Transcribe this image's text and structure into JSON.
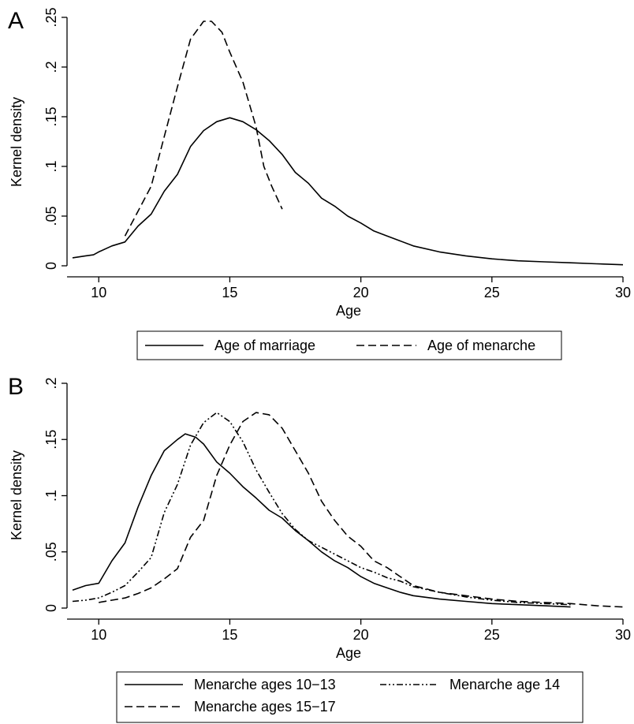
{
  "chart_data": [
    {
      "panel_label": "A",
      "type": "line",
      "xlabel": "Age",
      "ylabel": "Kernel density",
      "xlim": [
        9,
        30
      ],
      "ylim": [
        0,
        0.25
      ],
      "x_ticks": [
        10,
        15,
        20,
        25,
        30
      ],
      "y_ticks": [
        0,
        0.05,
        0.1,
        0.15,
        0.2,
        0.25
      ],
      "x_tick_labels": [
        "10",
        "15",
        "20",
        "25",
        "30"
      ],
      "y_tick_labels": [
        "0",
        ".05",
        ".1",
        ".15",
        ".2",
        ".25"
      ],
      "grid": false,
      "legend": "bottom",
      "series": [
        {
          "name": "Age of marriage",
          "style": "solid",
          "points": [
            [
              9,
              0.008
            ],
            [
              9.5,
              0.01
            ],
            [
              9.8,
              0.011
            ],
            [
              10,
              0.014
            ],
            [
              10.5,
              0.02
            ],
            [
              11,
              0.024
            ],
            [
              11.5,
              0.04
            ],
            [
              12,
              0.052
            ],
            [
              12.5,
              0.075
            ],
            [
              13,
              0.092
            ],
            [
              13.5,
              0.12
            ],
            [
              14,
              0.136
            ],
            [
              14.5,
              0.145
            ],
            [
              15,
              0.149
            ],
            [
              15.5,
              0.145
            ],
            [
              16,
              0.137
            ],
            [
              16.5,
              0.126
            ],
            [
              17,
              0.112
            ],
            [
              17.5,
              0.094
            ],
            [
              18,
              0.083
            ],
            [
              18.5,
              0.068
            ],
            [
              19,
              0.06
            ],
            [
              19.5,
              0.05
            ],
            [
              20,
              0.043
            ],
            [
              20.5,
              0.035
            ],
            [
              21,
              0.03
            ],
            [
              21.5,
              0.025
            ],
            [
              22,
              0.02
            ],
            [
              23,
              0.014
            ],
            [
              24,
              0.01
            ],
            [
              25,
              0.007
            ],
            [
              26,
              0.005
            ],
            [
              27,
              0.004
            ],
            [
              28,
              0.003
            ],
            [
              29,
              0.002
            ],
            [
              30,
              0.001
            ]
          ]
        },
        {
          "name": "Age of menarche",
          "style": "dashed",
          "points": [
            [
              11,
              0.03
            ],
            [
              11.5,
              0.055
            ],
            [
              12,
              0.08
            ],
            [
              12.5,
              0.13
            ],
            [
              13,
              0.18
            ],
            [
              13.5,
              0.228
            ],
            [
              14,
              0.246
            ],
            [
              14.3,
              0.246
            ],
            [
              14.7,
              0.235
            ],
            [
              15,
              0.215
            ],
            [
              15.5,
              0.185
            ],
            [
              16,
              0.14
            ],
            [
              16.3,
              0.1
            ],
            [
              16.6,
              0.08
            ],
            [
              17,
              0.057
            ]
          ]
        }
      ]
    },
    {
      "panel_label": "B",
      "type": "line",
      "xlabel": "Age",
      "ylabel": "Kernel density",
      "xlim": [
        9,
        30
      ],
      "ylim": [
        0,
        0.2
      ],
      "x_ticks": [
        10,
        15,
        20,
        25,
        30
      ],
      "y_ticks": [
        0,
        0.05,
        0.1,
        0.15,
        0.2
      ],
      "x_tick_labels": [
        "10",
        "15",
        "20",
        "25",
        "30"
      ],
      "y_tick_labels": [
        "0",
        ".05",
        ".1",
        ".15",
        ".2"
      ],
      "grid": false,
      "legend": "bottom",
      "series": [
        {
          "name": "Menarche ages 10−13",
          "style": "solid",
          "points": [
            [
              9,
              0.016
            ],
            [
              9.5,
              0.02
            ],
            [
              10,
              0.022
            ],
            [
              10.5,
              0.042
            ],
            [
              11,
              0.058
            ],
            [
              11.5,
              0.09
            ],
            [
              12,
              0.118
            ],
            [
              12.5,
              0.14
            ],
            [
              13,
              0.15
            ],
            [
              13.3,
              0.155
            ],
            [
              13.7,
              0.152
            ],
            [
              14,
              0.146
            ],
            [
              14.5,
              0.13
            ],
            [
              15,
              0.12
            ],
            [
              15.5,
              0.108
            ],
            [
              16,
              0.098
            ],
            [
              16.5,
              0.087
            ],
            [
              17,
              0.08
            ],
            [
              17.5,
              0.069
            ],
            [
              18,
              0.06
            ],
            [
              18.5,
              0.05
            ],
            [
              19,
              0.042
            ],
            [
              19.5,
              0.036
            ],
            [
              20,
              0.028
            ],
            [
              20.5,
              0.022
            ],
            [
              21,
              0.018
            ],
            [
              21.5,
              0.014
            ],
            [
              22,
              0.011
            ],
            [
              23,
              0.008
            ],
            [
              24,
              0.006
            ],
            [
              25,
              0.004
            ],
            [
              26,
              0.003
            ],
            [
              27,
              0.002
            ],
            [
              28,
              0.001
            ]
          ]
        },
        {
          "name": "Menarche age 14",
          "style": "dashdotdot",
          "points": [
            [
              9,
              0.006
            ],
            [
              9.5,
              0.007
            ],
            [
              10,
              0.009
            ],
            [
              10.5,
              0.014
            ],
            [
              11,
              0.02
            ],
            [
              11.5,
              0.032
            ],
            [
              12,
              0.045
            ],
            [
              12.5,
              0.085
            ],
            [
              13,
              0.11
            ],
            [
              13.5,
              0.145
            ],
            [
              14,
              0.165
            ],
            [
              14.5,
              0.174
            ],
            [
              15,
              0.166
            ],
            [
              15.5,
              0.148
            ],
            [
              16,
              0.123
            ],
            [
              16.5,
              0.103
            ],
            [
              17,
              0.084
            ],
            [
              17.5,
              0.07
            ],
            [
              18,
              0.06
            ],
            [
              18.5,
              0.054
            ],
            [
              19,
              0.048
            ],
            [
              19.5,
              0.042
            ],
            [
              20,
              0.036
            ],
            [
              20.5,
              0.032
            ],
            [
              21,
              0.027
            ],
            [
              21.5,
              0.024
            ],
            [
              22,
              0.019
            ],
            [
              23,
              0.014
            ],
            [
              24,
              0.01
            ],
            [
              25,
              0.007
            ],
            [
              26,
              0.005
            ],
            [
              27,
              0.004
            ],
            [
              28,
              0.003
            ]
          ]
        },
        {
          "name": "Menarche ages 15−17",
          "style": "dashed",
          "points": [
            [
              10,
              0.005
            ],
            [
              10.5,
              0.007
            ],
            [
              11,
              0.009
            ],
            [
              11.5,
              0.013
            ],
            [
              12,
              0.018
            ],
            [
              12.5,
              0.026
            ],
            [
              13,
              0.035
            ],
            [
              13.5,
              0.063
            ],
            [
              14,
              0.078
            ],
            [
              14.5,
              0.118
            ],
            [
              15,
              0.145
            ],
            [
              15.5,
              0.166
            ],
            [
              16,
              0.174
            ],
            [
              16.5,
              0.172
            ],
            [
              17,
              0.16
            ],
            [
              17.5,
              0.14
            ],
            [
              18,
              0.12
            ],
            [
              18.5,
              0.095
            ],
            [
              19,
              0.078
            ],
            [
              19.5,
              0.064
            ],
            [
              20,
              0.055
            ],
            [
              20.5,
              0.042
            ],
            [
              21,
              0.036
            ],
            [
              21.5,
              0.028
            ],
            [
              22,
              0.02
            ],
            [
              23,
              0.014
            ],
            [
              24,
              0.011
            ],
            [
              25,
              0.008
            ],
            [
              26,
              0.006
            ],
            [
              27,
              0.005
            ],
            [
              28,
              0.004
            ],
            [
              29,
              0.002
            ],
            [
              30,
              0.001
            ]
          ]
        }
      ]
    }
  ]
}
